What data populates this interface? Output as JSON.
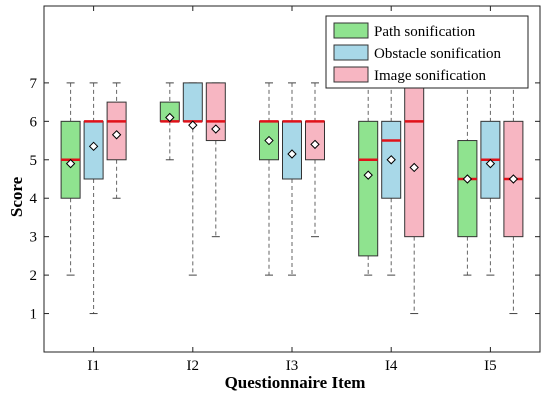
{
  "chart_data": {
    "type": "boxplot",
    "title": "",
    "xlabel": "Questionnaire Item",
    "ylabel": "Score",
    "ylim": [
      0,
      9
    ],
    "yticks": [
      1,
      2,
      3,
      4,
      5,
      6,
      7
    ],
    "categories": [
      "I1",
      "I2",
      "I3",
      "I4",
      "I5"
    ],
    "grid": false,
    "legend_position": "top-right",
    "series": [
      {
        "name": "Path sonification",
        "color": "#8fe38f",
        "boxes": [
          {
            "min": 2,
            "q1": 4,
            "median": 5,
            "q3": 6,
            "max": 7,
            "mean": 4.9
          },
          {
            "min": 5,
            "q1": 6,
            "median": 6,
            "q3": 6.5,
            "max": 7,
            "mean": 6.1
          },
          {
            "min": 2,
            "q1": 5,
            "median": 6,
            "q3": 6,
            "max": 7,
            "mean": 5.5
          },
          {
            "min": 2,
            "q1": 2.5,
            "median": 5,
            "q3": 6,
            "max": 7,
            "mean": 4.6
          },
          {
            "min": 2,
            "q1": 3,
            "median": 4.5,
            "q3": 5.5,
            "max": 7,
            "mean": 4.5
          }
        ]
      },
      {
        "name": "Obstacle sonification",
        "color": "#a8d8e8",
        "boxes": [
          {
            "min": 1,
            "q1": 4.5,
            "median": 6,
            "q3": 6,
            "max": 7,
            "mean": 5.35
          },
          {
            "min": 2,
            "q1": 6,
            "median": 6,
            "q3": 7,
            "max": 7,
            "mean": 5.9
          },
          {
            "min": 2,
            "q1": 4.5,
            "median": 6,
            "q3": 6,
            "max": 7,
            "mean": 5.15
          },
          {
            "min": 2,
            "q1": 4,
            "median": 5.5,
            "q3": 6,
            "max": 7,
            "mean": 5.0
          },
          {
            "min": 2,
            "q1": 4,
            "median": 5,
            "q3": 6,
            "max": 7,
            "mean": 4.9
          }
        ]
      },
      {
        "name": "Image sonification",
        "color": "#f7b6c2",
        "boxes": [
          {
            "min": 4,
            "q1": 5,
            "median": 6,
            "q3": 6.5,
            "max": 7,
            "mean": 5.65
          },
          {
            "min": 3,
            "q1": 5.5,
            "median": 6,
            "q3": 7,
            "max": 7,
            "mean": 5.8
          },
          {
            "min": 3,
            "q1": 5,
            "median": 6,
            "q3": 6,
            "max": 7,
            "mean": 5.4
          },
          {
            "min": 1,
            "q1": 3,
            "median": 6,
            "q3": 7,
            "max": 7,
            "mean": 4.8
          },
          {
            "min": 1,
            "q1": 3,
            "median": 4.5,
            "q3": 6,
            "max": 7,
            "mean": 4.5
          }
        ]
      }
    ]
  }
}
